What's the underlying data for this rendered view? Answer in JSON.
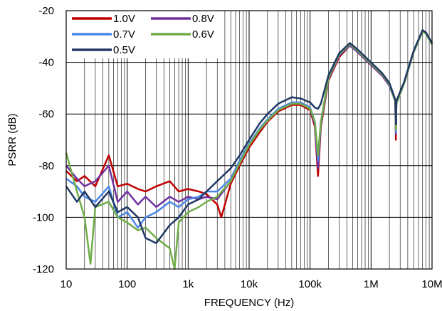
{
  "chart_data": {
    "type": "line",
    "title": "",
    "xlabel": "FREQUENCY (Hz)",
    "ylabel": "PSRR (dB)",
    "xscale": "log",
    "xlim": [
      10,
      10000000
    ],
    "ylim": [
      -120,
      -20
    ],
    "xticks": [
      10,
      100,
      1000,
      10000,
      100000,
      1000000,
      10000000
    ],
    "xtick_labels": [
      "10",
      "100",
      "1k",
      "10k",
      "100k",
      "1M",
      "10M"
    ],
    "yticks": [
      -20,
      -40,
      -60,
      -80,
      -100,
      -120
    ],
    "ytick_labels": [
      "-20",
      "-40",
      "-60",
      "-80",
      "-100",
      "-120"
    ],
    "grid": true,
    "legend_position": "top-left",
    "series": [
      {
        "name": "1.0V",
        "color": "#c00000",
        "points": [
          [
            10,
            -82
          ],
          [
            15,
            -86
          ],
          [
            20,
            -84
          ],
          [
            30,
            -88
          ],
          [
            50,
            -76
          ],
          [
            70,
            -88
          ],
          [
            100,
            -87
          ],
          [
            150,
            -89
          ],
          [
            200,
            -90
          ],
          [
            300,
            -88
          ],
          [
            500,
            -86
          ],
          [
            700,
            -90
          ],
          [
            1000,
            -89
          ],
          [
            1500,
            -90
          ],
          [
            2000,
            -91
          ],
          [
            3000,
            -95
          ],
          [
            3500,
            -100
          ],
          [
            5000,
            -87
          ],
          [
            7000,
            -80
          ],
          [
            10000,
            -73
          ],
          [
            15000,
            -67
          ],
          [
            20000,
            -63
          ],
          [
            30000,
            -59
          ],
          [
            50000,
            -56.5
          ],
          [
            70000,
            -56.5
          ],
          [
            100000,
            -58.5
          ],
          [
            120000,
            -65
          ],
          [
            135000,
            -84
          ],
          [
            150000,
            -65
          ],
          [
            200000,
            -47
          ],
          [
            300000,
            -38
          ],
          [
            450000,
            -33.5
          ],
          [
            600000,
            -36
          ],
          [
            1000000,
            -41
          ],
          [
            1500000,
            -45
          ],
          [
            2000000,
            -49
          ],
          [
            2500000,
            -55
          ],
          [
            2550000,
            -70
          ],
          [
            2600000,
            -56
          ],
          [
            3500000,
            -48
          ],
          [
            5000000,
            -36
          ],
          [
            7000000,
            -28
          ],
          [
            8000000,
            -29
          ],
          [
            10000000,
            -33
          ]
        ]
      },
      {
        "name": "0.8V",
        "color": "#7030a0",
        "points": [
          [
            10,
            -80
          ],
          [
            15,
            -85
          ],
          [
            20,
            -88
          ],
          [
            30,
            -86
          ],
          [
            50,
            -80
          ],
          [
            70,
            -94
          ],
          [
            100,
            -90
          ],
          [
            150,
            -95
          ],
          [
            200,
            -92
          ],
          [
            300,
            -96
          ],
          [
            500,
            -92
          ],
          [
            700,
            -94
          ],
          [
            1000,
            -92
          ],
          [
            1500,
            -93
          ],
          [
            2000,
            -92
          ],
          [
            3000,
            -93
          ],
          [
            5000,
            -86
          ],
          [
            7000,
            -79
          ],
          [
            10000,
            -72
          ],
          [
            15000,
            -66
          ],
          [
            20000,
            -62.5
          ],
          [
            30000,
            -58.5
          ],
          [
            50000,
            -56
          ],
          [
            70000,
            -56
          ],
          [
            100000,
            -58
          ],
          [
            120000,
            -64
          ],
          [
            135000,
            -81
          ],
          [
            150000,
            -64
          ],
          [
            200000,
            -46.5
          ],
          [
            300000,
            -37.5
          ],
          [
            450000,
            -33.5
          ],
          [
            600000,
            -36
          ],
          [
            1000000,
            -41
          ],
          [
            1500000,
            -45
          ],
          [
            2000000,
            -49
          ],
          [
            2500000,
            -55
          ],
          [
            2550000,
            -68
          ],
          [
            2600000,
            -56
          ],
          [
            3500000,
            -48
          ],
          [
            5000000,
            -36
          ],
          [
            7000000,
            -28
          ],
          [
            8000000,
            -29
          ],
          [
            10000000,
            -33
          ]
        ]
      },
      {
        "name": "0.7V",
        "color": "#4a86e8",
        "points": [
          [
            10,
            -85
          ],
          [
            15,
            -88
          ],
          [
            20,
            -92
          ],
          [
            30,
            -94
          ],
          [
            50,
            -88
          ],
          [
            70,
            -100
          ],
          [
            100,
            -98
          ],
          [
            150,
            -104
          ],
          [
            200,
            -100
          ],
          [
            300,
            -98
          ],
          [
            500,
            -94
          ],
          [
            700,
            -96
          ],
          [
            1000,
            -93
          ],
          [
            1500,
            -92
          ],
          [
            2000,
            -90
          ],
          [
            3000,
            -90
          ],
          [
            5000,
            -85
          ],
          [
            7000,
            -78
          ],
          [
            10000,
            -71.5
          ],
          [
            15000,
            -65.5
          ],
          [
            20000,
            -62
          ],
          [
            30000,
            -58
          ],
          [
            50000,
            -55.5
          ],
          [
            70000,
            -55.5
          ],
          [
            100000,
            -57.5
          ],
          [
            120000,
            -63
          ],
          [
            135000,
            -78
          ],
          [
            150000,
            -63
          ],
          [
            200000,
            -46
          ],
          [
            300000,
            -37
          ],
          [
            450000,
            -33
          ],
          [
            600000,
            -35.5
          ],
          [
            1000000,
            -40.5
          ],
          [
            1500000,
            -44.5
          ],
          [
            2000000,
            -48.5
          ],
          [
            2500000,
            -55
          ],
          [
            2550000,
            -67
          ],
          [
            2600000,
            -56
          ],
          [
            3500000,
            -48
          ],
          [
            5000000,
            -36
          ],
          [
            7000000,
            -28
          ],
          [
            8000000,
            -29
          ],
          [
            10000000,
            -33
          ]
        ]
      },
      {
        "name": "0.6V",
        "color": "#70ad47",
        "points": [
          [
            10,
            -75
          ],
          [
            15,
            -90
          ],
          [
            20,
            -100
          ],
          [
            25,
            -118
          ],
          [
            30,
            -96
          ],
          [
            50,
            -94
          ],
          [
            70,
            -100
          ],
          [
            100,
            -102
          ],
          [
            150,
            -105
          ],
          [
            200,
            -104
          ],
          [
            300,
            -108
          ],
          [
            500,
            -112
          ],
          [
            600,
            -120
          ],
          [
            700,
            -102
          ],
          [
            1000,
            -98
          ],
          [
            1500,
            -96
          ],
          [
            2000,
            -94
          ],
          [
            3000,
            -92
          ],
          [
            5000,
            -86
          ],
          [
            7000,
            -79
          ],
          [
            10000,
            -72
          ],
          [
            15000,
            -66
          ],
          [
            20000,
            -62.5
          ],
          [
            30000,
            -58.5
          ],
          [
            50000,
            -56
          ],
          [
            70000,
            -56
          ],
          [
            100000,
            -58
          ],
          [
            120000,
            -63
          ],
          [
            135000,
            -76
          ],
          [
            150000,
            -63
          ],
          [
            200000,
            -46
          ],
          [
            300000,
            -37
          ],
          [
            450000,
            -33
          ],
          [
            600000,
            -35.5
          ],
          [
            1000000,
            -40.5
          ],
          [
            1500000,
            -44.5
          ],
          [
            2000000,
            -48.5
          ],
          [
            2500000,
            -55
          ],
          [
            2550000,
            -66
          ],
          [
            2600000,
            -56
          ],
          [
            3500000,
            -48
          ],
          [
            5000000,
            -36
          ],
          [
            7000000,
            -28
          ],
          [
            8000000,
            -29
          ],
          [
            10000000,
            -33
          ]
        ]
      },
      {
        "name": "0.5V",
        "color": "#203864",
        "points": [
          [
            10,
            -88
          ],
          [
            15,
            -94
          ],
          [
            20,
            -90
          ],
          [
            30,
            -96
          ],
          [
            50,
            -90
          ],
          [
            70,
            -98
          ],
          [
            100,
            -96
          ],
          [
            150,
            -100
          ],
          [
            200,
            -108
          ],
          [
            300,
            -110
          ],
          [
            500,
            -103
          ],
          [
            700,
            -100
          ],
          [
            1000,
            -95
          ],
          [
            1500,
            -93
          ],
          [
            2000,
            -90
          ],
          [
            3000,
            -86
          ],
          [
            5000,
            -81
          ],
          [
            7000,
            -76
          ],
          [
            10000,
            -70
          ],
          [
            15000,
            -63.5
          ],
          [
            20000,
            -60
          ],
          [
            30000,
            -56
          ],
          [
            50000,
            -53.5
          ],
          [
            70000,
            -54
          ],
          [
            100000,
            -55.5
          ],
          [
            120000,
            -57.5
          ],
          [
            135000,
            -58
          ],
          [
            150000,
            -56
          ],
          [
            200000,
            -45
          ],
          [
            300000,
            -36.5
          ],
          [
            450000,
            -32.5
          ],
          [
            600000,
            -35
          ],
          [
            1000000,
            -40
          ],
          [
            1500000,
            -44
          ],
          [
            2000000,
            -48
          ],
          [
            2500000,
            -54.5
          ],
          [
            2550000,
            -64
          ],
          [
            2600000,
            -55
          ],
          [
            3500000,
            -47.5
          ],
          [
            5000000,
            -35.5
          ],
          [
            7000000,
            -27.5
          ],
          [
            8000000,
            -28.5
          ],
          [
            10000000,
            -32.5
          ]
        ]
      }
    ]
  }
}
